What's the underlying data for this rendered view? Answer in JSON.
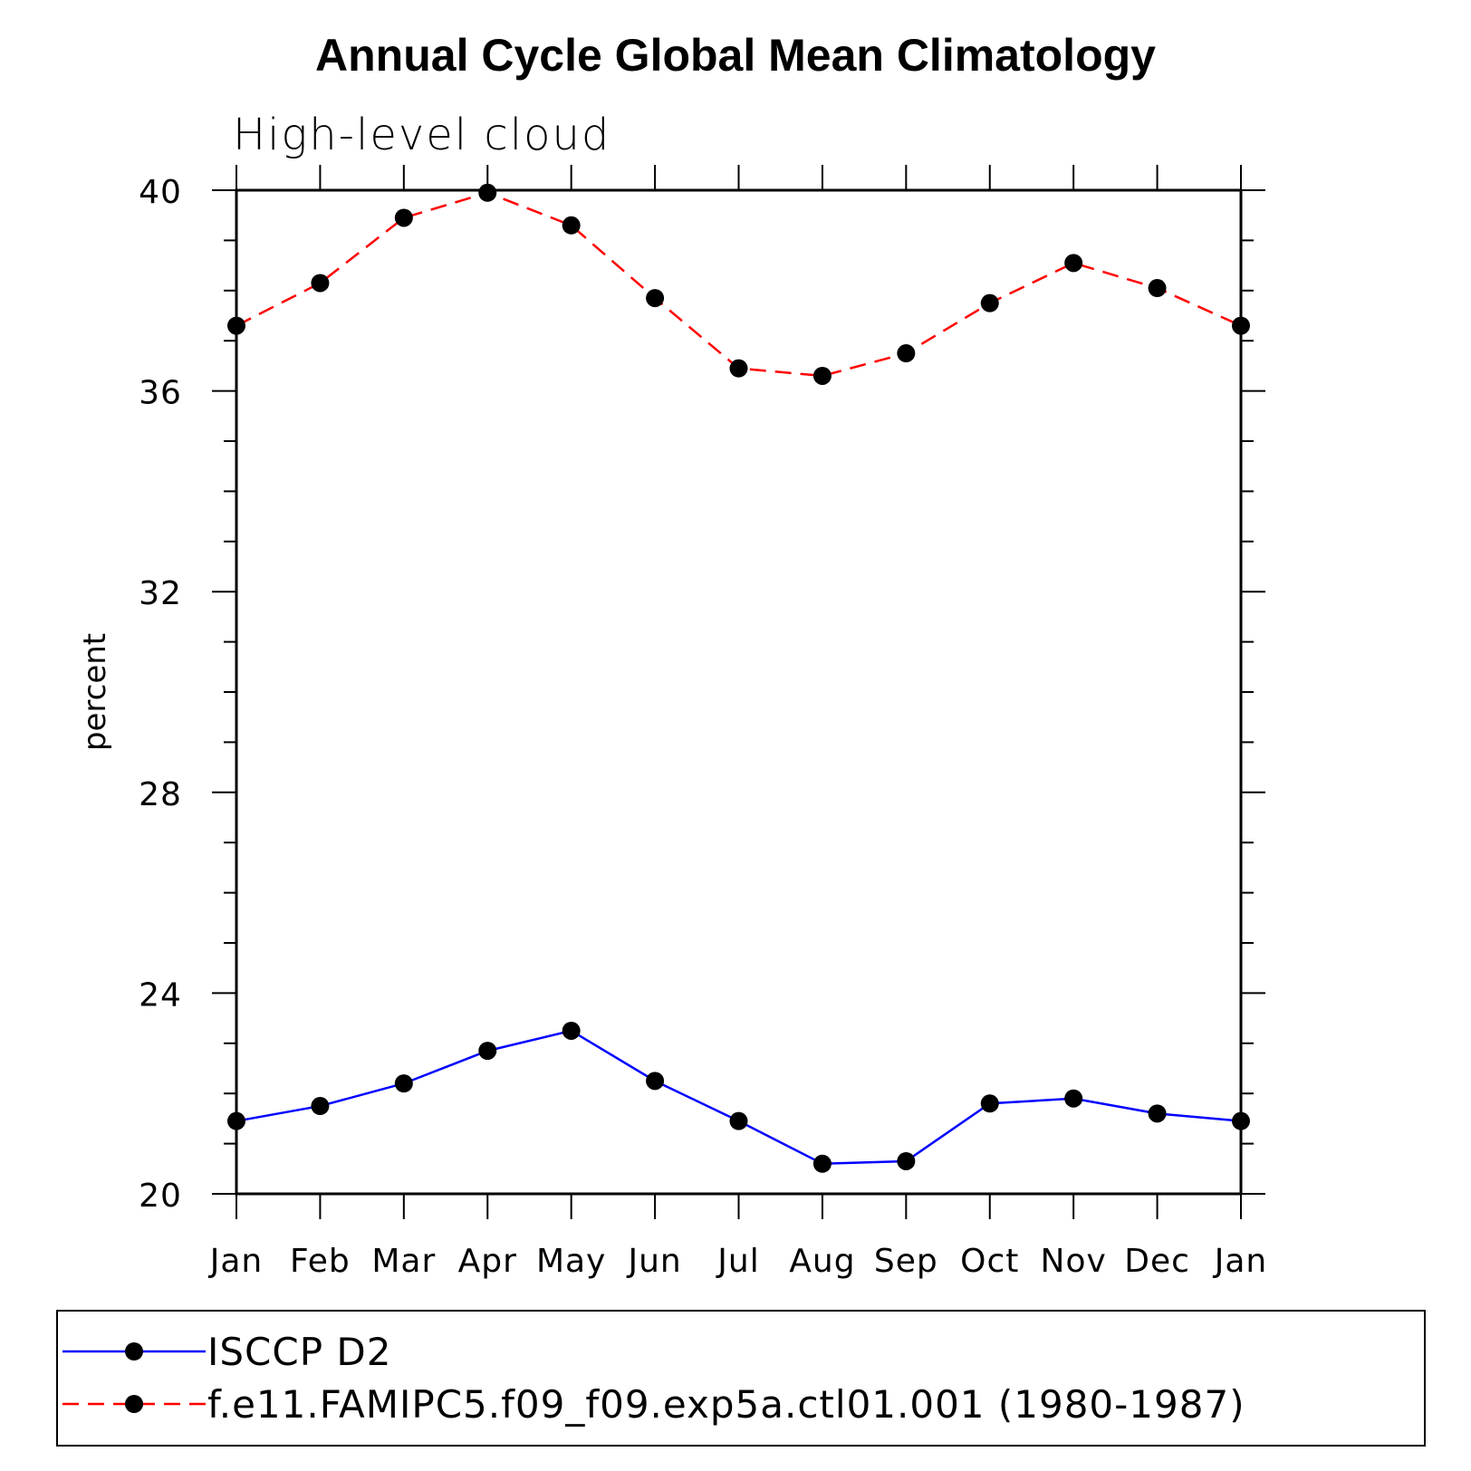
{
  "chart_data": {
    "type": "line",
    "title": "Annual Cycle Global Mean Climatology",
    "subtitle": "High-level cloud",
    "xlabel": "",
    "ylabel": "percent",
    "categories": [
      "Jan",
      "Feb",
      "Mar",
      "Apr",
      "May",
      "Jun",
      "Jul",
      "Aug",
      "Sep",
      "Oct",
      "Nov",
      "Dec",
      "Jan"
    ],
    "ylim": [
      20,
      40
    ],
    "yticks": [
      "20",
      "24",
      "28",
      "32",
      "36",
      "40"
    ],
    "grid": false,
    "legend_placement": "bottom",
    "series": [
      {
        "name": "ISCCP D2",
        "color": "#0000ff",
        "dash": "solid",
        "marker": "filled-circle",
        "values": [
          21.45,
          21.75,
          22.2,
          22.85,
          23.25,
          22.25,
          21.45,
          20.6,
          20.65,
          21.8,
          21.9,
          21.6,
          21.45
        ]
      },
      {
        "name": "f.e11.FAMIPC5.f09_f09.exp5a.ctl01.001 (1980-1987)",
        "color": "#ff0000",
        "dash": "dashed",
        "marker": "filled-circle",
        "values": [
          37.3,
          38.15,
          39.45,
          39.95,
          39.3,
          37.85,
          36.45,
          36.3,
          36.75,
          37.75,
          38.55,
          38.05,
          37.3
        ]
      }
    ]
  }
}
